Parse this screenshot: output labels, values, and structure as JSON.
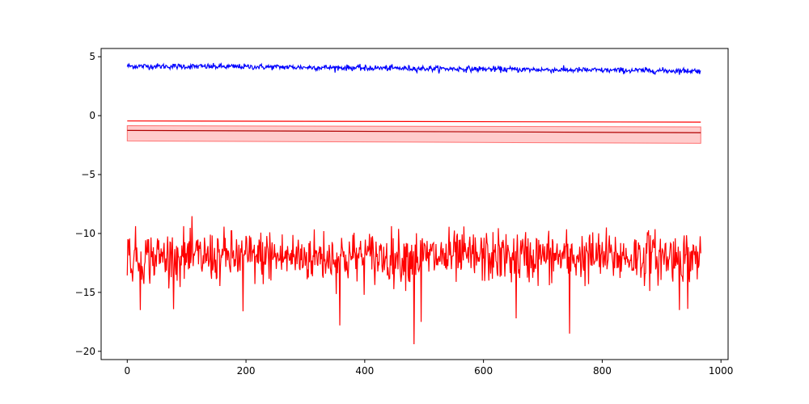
{
  "chart_data": {
    "type": "line",
    "title": "",
    "xlabel": "",
    "ylabel": "",
    "xlim": [
      -44,
      1012
    ],
    "ylim": [
      -20.7,
      5.7
    ],
    "x_ticks": [
      0,
      200,
      400,
      600,
      800,
      1000
    ],
    "x_tick_labels": [
      "0",
      "200",
      "400",
      "600",
      "800",
      "1000"
    ],
    "y_ticks": [
      5,
      0,
      -5,
      -10,
      -15,
      -20
    ],
    "y_tick_labels": [
      "5",
      "0",
      "−5",
      "−10",
      "−15",
      "−20"
    ],
    "grid": false,
    "legend": "none",
    "n_points": 967,
    "series": [
      {
        "color": "#0000ff",
        "kind": "noisy-line",
        "trend_x": [
          0,
          200,
          400,
          600,
          800,
          966
        ],
        "trend_y": [
          4.2,
          4.15,
          4.05,
          3.95,
          3.85,
          3.8
        ],
        "noise": 0.12,
        "spikes": [
          [
            400,
            3.8
          ],
          [
            405,
            3.85
          ]
        ]
      },
      {
        "color": "#ff0000",
        "kind": "smooth-line",
        "x": [
          0,
          966
        ],
        "y": [
          -0.45,
          -0.55
        ]
      },
      {
        "color": "#b00000",
        "kind": "mean-with-band",
        "x": [
          0,
          966
        ],
        "y": [
          -1.25,
          -1.45
        ],
        "band_lower": [
          -2.15,
          -2.35
        ],
        "band_upper": [
          -0.85,
          -0.95
        ],
        "band_color": "#ff0000",
        "band_opacity": 0.2
      },
      {
        "color": "#ff0000",
        "kind": "noisy-line",
        "trend_x": [
          0,
          966
        ],
        "trend_y": [
          -12.0,
          -12.0
        ],
        "noise": 1.1,
        "spikes": [
          [
            22,
            -16.5
          ],
          [
            195,
            -16.6
          ],
          [
            358,
            -17.8
          ],
          [
            483,
            -19.4
          ],
          [
            495,
            -17.5
          ],
          [
            655,
            -17.2
          ],
          [
            745,
            -18.5
          ],
          [
            930,
            -16.5
          ],
          [
            944,
            -16.4
          ],
          [
            240,
            -9.9
          ],
          [
            331,
            -9.8
          ],
          [
            876,
            -9.9
          ]
        ]
      }
    ]
  }
}
